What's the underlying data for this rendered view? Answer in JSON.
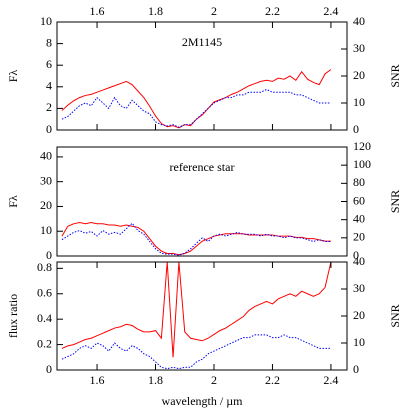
{
  "chart_data": [
    {
      "type": "line",
      "annotation": "2M1145",
      "ylabel": "Fλ",
      "y2label": "SNR",
      "xaxis_side": "top",
      "xlim": [
        1.463,
        2.455
      ],
      "xticks": [
        1.6,
        1.8,
        2,
        2.2,
        2.4
      ],
      "ylim": [
        0,
        10
      ],
      "yticks": [
        0,
        2,
        4,
        6,
        8,
        10
      ],
      "y2lim": [
        0,
        40
      ],
      "y2ticks": [
        0,
        10,
        20,
        30,
        40
      ],
      "x": [
        1.48,
        1.5,
        1.52,
        1.54,
        1.56,
        1.58,
        1.6,
        1.62,
        1.64,
        1.66,
        1.68,
        1.7,
        1.72,
        1.74,
        1.76,
        1.78,
        1.8,
        1.82,
        1.84,
        1.86,
        1.88,
        1.9,
        1.92,
        1.94,
        1.96,
        1.98,
        2,
        2.02,
        2.04,
        2.06,
        2.08,
        2.1,
        2.12,
        2.14,
        2.16,
        2.18,
        2.2,
        2.22,
        2.24,
        2.26,
        2.28,
        2.3,
        2.32,
        2.34,
        2.36,
        2.38,
        2.4
      ],
      "series": [
        {
          "color": "#ff0000",
          "style": "solid",
          "values": [
            1.8,
            2.3,
            2.7,
            3.0,
            3.2,
            3.3,
            3.5,
            3.7,
            3.9,
            4.1,
            4.3,
            4.5,
            4.2,
            3.6,
            3.0,
            2.2,
            1.3,
            0.6,
            0.3,
            0.4,
            0.2,
            0.5,
            0.4,
            1.0,
            1.4,
            2.0,
            2.6,
            2.8,
            3.0,
            3.3,
            3.5,
            3.8,
            4.1,
            4.3,
            4.5,
            4.6,
            4.5,
            4.8,
            4.7,
            5.0,
            4.6,
            5.4,
            4.7,
            4.4,
            4.2,
            5.2,
            5.6
          ]
        },
        {
          "color": "#0000ff",
          "style": "dotted",
          "axis": "y2",
          "values": [
            4,
            5,
            7,
            9,
            10,
            9,
            12,
            10,
            8,
            12,
            9,
            8,
            11,
            9,
            7,
            6,
            3,
            2,
            1.5,
            2,
            1,
            2,
            2,
            4,
            6,
            8,
            10,
            11,
            12,
            12,
            13,
            13,
            14,
            14,
            14,
            15,
            14,
            14,
            14,
            14,
            13,
            13,
            12,
            11,
            10,
            10,
            10
          ]
        }
      ]
    },
    {
      "type": "line",
      "annotation": "reference star",
      "ylabel": "Fλ",
      "y2label": "SNR",
      "xlim": [
        1.463,
        2.455
      ],
      "ylim": [
        0,
        44
      ],
      "yticks": [
        0,
        10,
        20,
        30,
        40
      ],
      "y2lim": [
        0,
        120
      ],
      "y2ticks": [
        0,
        20,
        40,
        60,
        80,
        100,
        120
      ],
      "x": [
        1.48,
        1.5,
        1.52,
        1.54,
        1.56,
        1.58,
        1.6,
        1.62,
        1.64,
        1.66,
        1.68,
        1.7,
        1.72,
        1.74,
        1.76,
        1.78,
        1.8,
        1.82,
        1.84,
        1.86,
        1.88,
        1.9,
        1.92,
        1.94,
        1.96,
        1.98,
        2,
        2.02,
        2.04,
        2.06,
        2.08,
        2.1,
        2.12,
        2.14,
        2.16,
        2.18,
        2.2,
        2.22,
        2.24,
        2.26,
        2.28,
        2.3,
        2.32,
        2.34,
        2.36,
        2.38,
        2.4
      ],
      "series": [
        {
          "color": "#ff0000",
          "style": "solid",
          "values": [
            8,
            12,
            13,
            13.5,
            13,
            13.5,
            13,
            13,
            12.5,
            12.5,
            12,
            12.5,
            12,
            11.5,
            10,
            7,
            4,
            2,
            1,
            1,
            0.5,
            1,
            2,
            4,
            6,
            7,
            8,
            8.5,
            9,
            9,
            9,
            9,
            8.5,
            8.5,
            8.5,
            8.5,
            8.5,
            8,
            8,
            8,
            7.5,
            7.5,
            7,
            7,
            6.5,
            6,
            6
          ]
        },
        {
          "color": "#0000ff",
          "style": "dotted",
          "axis": "y2",
          "values": [
            18,
            22,
            26,
            28,
            25,
            27,
            22,
            28,
            24,
            26,
            24,
            30,
            36,
            28,
            24,
            16,
            8,
            3,
            2,
            2,
            1,
            3,
            8,
            14,
            20,
            16,
            22,
            24,
            22,
            24,
            26,
            24,
            24,
            24,
            22,
            24,
            22,
            22,
            20,
            22,
            20,
            20,
            18,
            16,
            18,
            16,
            16
          ]
        }
      ]
    },
    {
      "type": "line",
      "ylabel": "flux ratio",
      "y2label": "SNR",
      "xlabel": "wavelength / µm",
      "xaxis_side": "bottom",
      "xlim": [
        1.463,
        2.455
      ],
      "xticks": [
        1.6,
        1.8,
        2,
        2.2,
        2.4
      ],
      "ylim": [
        0,
        0.85
      ],
      "yticks": [
        0,
        0.2,
        0.4,
        0.6,
        0.8
      ],
      "y2lim": [
        0,
        40
      ],
      "y2ticks": [
        0,
        10,
        20,
        30,
        40
      ],
      "x": [
        1.48,
        1.5,
        1.52,
        1.54,
        1.56,
        1.58,
        1.6,
        1.62,
        1.64,
        1.66,
        1.68,
        1.7,
        1.72,
        1.74,
        1.76,
        1.78,
        1.8,
        1.82,
        1.84,
        1.86,
        1.88,
        1.9,
        1.92,
        1.94,
        1.96,
        1.98,
        2,
        2.02,
        2.04,
        2.06,
        2.08,
        2.1,
        2.12,
        2.14,
        2.16,
        2.18,
        2.2,
        2.22,
        2.24,
        2.26,
        2.28,
        2.3,
        2.32,
        2.34,
        2.36,
        2.38,
        2.4
      ],
      "series": [
        {
          "color": "#ff0000",
          "style": "solid",
          "values": [
            0.17,
            0.19,
            0.2,
            0.22,
            0.24,
            0.25,
            0.27,
            0.29,
            0.31,
            0.33,
            0.34,
            0.36,
            0.35,
            0.32,
            0.3,
            0.3,
            0.31,
            0.25,
            0.85,
            0.1,
            0.85,
            0.3,
            0.25,
            0.24,
            0.23,
            0.25,
            0.28,
            0.31,
            0.33,
            0.36,
            0.39,
            0.42,
            0.47,
            0.5,
            0.52,
            0.54,
            0.52,
            0.56,
            0.58,
            0.6,
            0.58,
            0.62,
            0.6,
            0.58,
            0.6,
            0.65,
            0.85
          ]
        },
        {
          "color": "#0000ff",
          "style": "dotted",
          "axis": "y2",
          "values": [
            4,
            5,
            6,
            8,
            9,
            8,
            10,
            9,
            7,
            10,
            8,
            7,
            9,
            8,
            6,
            5,
            3,
            1,
            0.5,
            1,
            0.5,
            1,
            1,
            3,
            4,
            6,
            7,
            8,
            9,
            10,
            11,
            12,
            12,
            13,
            13,
            13,
            12,
            12,
            13,
            12,
            12,
            11,
            10,
            9,
            8,
            8,
            8
          ]
        }
      ]
    }
  ]
}
